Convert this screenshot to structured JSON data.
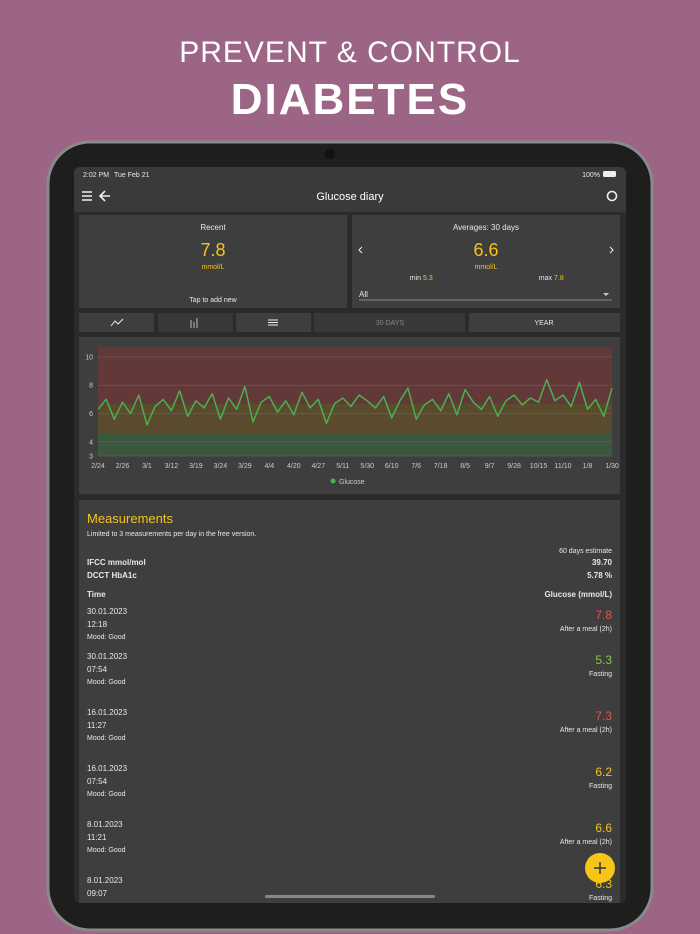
{
  "header": {
    "line1": "PREVENT & CONTROL",
    "line2": "DIABETES"
  },
  "status_bar": {
    "time": "2:02 PM",
    "date": "Tue Feb 21",
    "battery": "100%"
  },
  "toolbar": {
    "title": "Glucose diary"
  },
  "recent": {
    "label": "Recent",
    "value": "7.8",
    "unit": "mmol/L",
    "hint": "Tap to add new"
  },
  "averages": {
    "label": "Averages: 30 days",
    "value": "6.6",
    "unit": "mmol/L",
    "min_label": "min",
    "min": "5.3",
    "max_label": "max",
    "max": "7.8",
    "filter": "All"
  },
  "tabs": [
    "30 DAYS",
    "YEAR"
  ],
  "chart_data": {
    "type": "line",
    "categories": [
      "2/24",
      null,
      null,
      "2/26",
      null,
      null,
      "3/1",
      null,
      null,
      "3/12",
      null,
      null,
      "3/19",
      null,
      null,
      "3/24",
      null,
      null,
      "3/29",
      null,
      null,
      "4/4",
      null,
      null,
      "4/20",
      null,
      null,
      "4/27",
      null,
      null,
      "5/11",
      null,
      null,
      "5/30",
      null,
      null,
      "6/10",
      null,
      null,
      "7/6",
      null,
      null,
      "7/18",
      null,
      null,
      "8/5",
      null,
      null,
      "9/7",
      null,
      null,
      "9/28",
      null,
      null,
      "10/15",
      null,
      null,
      "11/10",
      null,
      null,
      "1/8",
      null,
      null,
      "1/30"
    ],
    "series": [
      {
        "name": "Glucose",
        "color": "#4caf50",
        "values": [
          6.3,
          7.0,
          5.6,
          6.8,
          6.0,
          7.3,
          5.2,
          6.5,
          7.0,
          6.2,
          7.6,
          5.8,
          6.9,
          6.4,
          7.4,
          5.6,
          7.1,
          6.3,
          7.9,
          5.4,
          6.8,
          7.2,
          6.1,
          6.9,
          5.9,
          7.5,
          6.4,
          7.0,
          5.3,
          6.7,
          7.1,
          6.5,
          7.3,
          6.9,
          6.4,
          7.2,
          5.7,
          6.9,
          7.8,
          5.6,
          6.6,
          7.0,
          6.2,
          7.4,
          5.9,
          7.7,
          6.8,
          6.3,
          7.2,
          5.8,
          6.9,
          7.3,
          6.6,
          7.1,
          6.8,
          8.4,
          6.9,
          7.3,
          6.5,
          8.2,
          6.3,
          7.0,
          5.8,
          7.8
        ]
      }
    ],
    "ylim": [
      3,
      10.7
    ],
    "yticks": [
      3,
      4,
      6,
      8,
      10
    ],
    "grid": true,
    "zones": [
      {
        "from": 3,
        "to": 4.6,
        "color": "#3b573d"
      },
      {
        "from": 4.6,
        "to": 6.7,
        "color": "#5a4b2e"
      },
      {
        "from": 6.7,
        "to": 10.7,
        "color": "#633838"
      }
    ],
    "legend": "bottom"
  },
  "measurements": {
    "title": "Measurements",
    "note": "Limited to 3 measurements per day in the free version.",
    "estimate_label": "60 days estimate",
    "ifcc_label": "IFCC mmol/mol",
    "ifcc": "39.70",
    "dcct_label": "DCCT HbA1c",
    "dcct": "5.78 %",
    "col_time": "Time",
    "col_glucose": "Glucose (mmol/L)",
    "rows": [
      {
        "date": "30.01.2023",
        "time": "12:18",
        "mood": "Mood: Good",
        "value": "7.8",
        "context": "After a meal (2h)",
        "color": "#e5534b"
      },
      {
        "date": "30.01.2023",
        "time": "07:54",
        "mood": "Mood: Good",
        "value": "5.3",
        "context": "Fasting",
        "color": "#8bc34a"
      },
      {
        "date": "16.01.2023",
        "time": "11:27",
        "mood": "Mood: Good",
        "value": "7.3",
        "context": "After a meal (2h)",
        "color": "#e5534b"
      },
      {
        "date": "16.01.2023",
        "time": "07:54",
        "mood": "Mood: Good",
        "value": "6.2",
        "context": "Fasting",
        "color": "#f5c518"
      },
      {
        "date": "8.01.2023",
        "time": "11:21",
        "mood": "Mood: Good",
        "value": "6.6",
        "context": "After a meal (2h)",
        "color": "#f5c518"
      },
      {
        "date": "8.01.2023",
        "time": "09:07",
        "mood": null,
        "value": "6.3",
        "context": "Fasting",
        "color": "#f5c518"
      }
    ]
  }
}
